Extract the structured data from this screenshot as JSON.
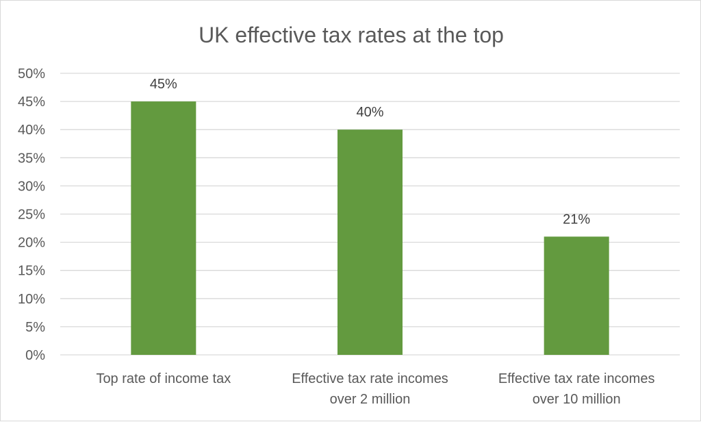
{
  "chart_data": {
    "type": "bar",
    "title": "UK effective tax rates at the top",
    "categories": [
      [
        "Top rate of income tax"
      ],
      [
        "Effective tax rate incomes",
        "over 2 million"
      ],
      [
        "Effective tax rate incomes",
        "over 10 million"
      ]
    ],
    "values": [
      45,
      40,
      21
    ],
    "data_labels": [
      "45%",
      "40%",
      "21%"
    ],
    "ylim": [
      0,
      50
    ],
    "yticks": [
      0,
      5,
      10,
      15,
      20,
      25,
      30,
      35,
      40,
      45,
      50
    ],
    "ytick_labels": [
      "0%",
      "5%",
      "10%",
      "15%",
      "20%",
      "25%",
      "30%",
      "35%",
      "40%",
      "45%",
      "50%"
    ],
    "grid": true,
    "legend": "none",
    "colors": {
      "bar": "#639a3f",
      "grid": "#d9d9d9",
      "text": "#595959",
      "label_text": "#404040",
      "title": "#595959"
    }
  }
}
